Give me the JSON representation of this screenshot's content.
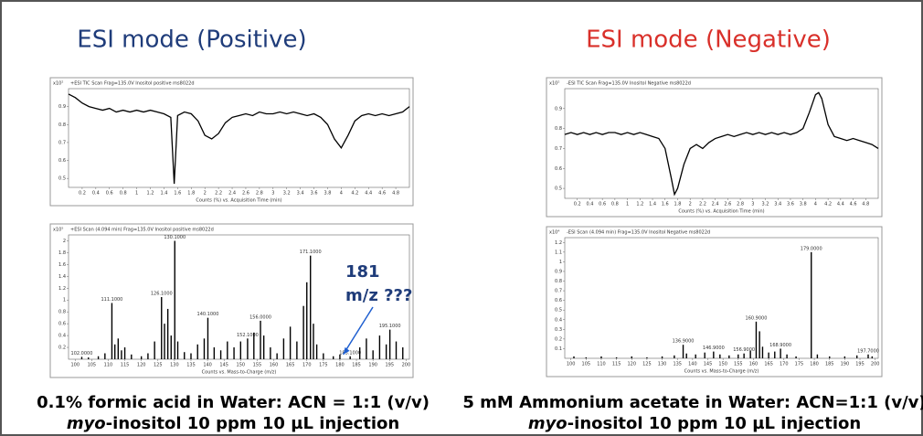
{
  "left": {
    "title": "ESI mode (Positive)",
    "caption_line1": "0.1% formic acid in Water: ACN = 1:1 (v/v)",
    "caption_italic": "myo",
    "caption_line2": "-inositol 10 ppm 10 µL injection"
  },
  "right": {
    "title": "ESI mode (Negative)",
    "caption_line1": "5 mM Ammonium acetate in Water: ACN=1:1 (v/v)",
    "caption_italic": "myo",
    "caption_line2": "-inositol 10 ppm 10 µL injection"
  },
  "chart_data": [
    {
      "type": "line",
      "header": "+ESI TIC Scan Frag=135.0V Inositol positive ms8022d",
      "y_multiplier": "x10²",
      "x_label": "Counts (%) vs. Acquisition Time (min)",
      "color": "#000000",
      "x": [
        0,
        0.1,
        0.2,
        0.3,
        0.4,
        0.5,
        0.6,
        0.7,
        0.8,
        0.9,
        1,
        1.1,
        1.2,
        1.3,
        1.4,
        1.5,
        1.55,
        1.6,
        1.7,
        1.8,
        1.9,
        2,
        2.1,
        2.2,
        2.3,
        2.4,
        2.5,
        2.6,
        2.7,
        2.8,
        2.9,
        3,
        3.1,
        3.2,
        3.3,
        3.4,
        3.5,
        3.6,
        3.7,
        3.8,
        3.9,
        4,
        4.1,
        4.2,
        4.3,
        4.4,
        4.5,
        4.6,
        4.7,
        4.8,
        4.9,
        5
      ],
      "values": [
        0.97,
        0.95,
        0.92,
        0.9,
        0.89,
        0.88,
        0.89,
        0.87,
        0.88,
        0.87,
        0.88,
        0.87,
        0.88,
        0.87,
        0.86,
        0.84,
        0.47,
        0.85,
        0.87,
        0.86,
        0.82,
        0.74,
        0.72,
        0.75,
        0.81,
        0.84,
        0.85,
        0.86,
        0.85,
        0.87,
        0.86,
        0.86,
        0.87,
        0.86,
        0.87,
        0.86,
        0.85,
        0.86,
        0.84,
        0.8,
        0.72,
        0.67,
        0.74,
        0.82,
        0.85,
        0.86,
        0.85,
        0.86,
        0.85,
        0.86,
        0.87,
        0.9
      ],
      "xlim": [
        0,
        5
      ],
      "xticks": [
        0.2,
        0.4,
        0.6,
        0.8,
        1,
        1.2,
        1.4,
        1.6,
        1.8,
        2,
        2.2,
        2.4,
        2.6,
        2.8,
        3,
        3.2,
        3.4,
        3.6,
        3.8,
        4,
        4.2,
        4.4,
        4.6,
        4.8
      ],
      "ylim": [
        0.45,
        1.0
      ],
      "yticks": [
        0.5,
        0.6,
        0.7,
        0.8,
        0.9
      ]
    },
    {
      "type": "line",
      "header": "-ESI TIC Scan Frag=135.0V Inositol Negative ms8022d",
      "y_multiplier": "x10²",
      "x_label": "Counts (%) vs. Acquisition Time (min)",
      "color": "#000000",
      "x": [
        0,
        0.1,
        0.2,
        0.3,
        0.4,
        0.5,
        0.6,
        0.7,
        0.8,
        0.9,
        1,
        1.1,
        1.2,
        1.3,
        1.4,
        1.5,
        1.6,
        1.7,
        1.75,
        1.8,
        1.9,
        2,
        2.1,
        2.2,
        2.3,
        2.4,
        2.5,
        2.6,
        2.7,
        2.8,
        2.9,
        3,
        3.1,
        3.2,
        3.3,
        3.4,
        3.5,
        3.6,
        3.7,
        3.8,
        3.9,
        4,
        4.05,
        4.1,
        4.2,
        4.3,
        4.4,
        4.5,
        4.6,
        4.7,
        4.8,
        4.9,
        5
      ],
      "values": [
        0.77,
        0.78,
        0.77,
        0.78,
        0.77,
        0.78,
        0.77,
        0.78,
        0.78,
        0.77,
        0.78,
        0.77,
        0.78,
        0.77,
        0.76,
        0.75,
        0.7,
        0.55,
        0.47,
        0.5,
        0.62,
        0.7,
        0.72,
        0.7,
        0.73,
        0.75,
        0.76,
        0.77,
        0.76,
        0.77,
        0.78,
        0.77,
        0.78,
        0.77,
        0.78,
        0.77,
        0.78,
        0.77,
        0.78,
        0.8,
        0.88,
        0.97,
        0.98,
        0.95,
        0.82,
        0.76,
        0.75,
        0.74,
        0.75,
        0.74,
        0.73,
        0.72,
        0.7
      ],
      "xlim": [
        0,
        5
      ],
      "xticks": [
        0.2,
        0.4,
        0.6,
        0.8,
        1,
        1.2,
        1.4,
        1.6,
        1.8,
        2,
        2.2,
        2.4,
        2.6,
        2.8,
        3,
        3.2,
        3.4,
        3.6,
        3.8,
        4,
        4.2,
        4.4,
        4.6,
        4.8
      ],
      "ylim": [
        0.45,
        1.0
      ],
      "yticks": [
        0.5,
        0.6,
        0.7,
        0.8,
        0.9
      ]
    },
    {
      "type": "spectrum",
      "header": "+ESI Scan (4.094 min) Frag=135.0V Inositol positive ms8022d",
      "y_multiplier": "x10⁵",
      "x_label": "Counts vs. Mass-to-Charge (m/z)",
      "color": "#000000",
      "annotations": [
        "181",
        "m/z ???"
      ],
      "x": [
        102,
        104,
        107,
        109,
        111.1,
        112,
        113,
        114,
        115,
        117,
        120,
        122,
        124,
        126.1,
        127,
        128,
        129,
        130.1,
        131,
        133,
        135,
        137,
        139,
        140.1,
        142,
        144,
        146,
        148,
        150,
        152.1,
        154,
        156,
        157,
        159,
        161,
        163,
        165,
        167,
        169,
        170,
        171.1,
        172,
        173,
        175,
        178,
        180,
        183.1,
        186,
        188,
        190,
        192,
        194,
        195.1,
        197,
        199
      ],
      "values": [
        0.04,
        0.03,
        0.05,
        0.1,
        0.95,
        0.25,
        0.35,
        0.15,
        0.2,
        0.08,
        0.05,
        0.1,
        0.3,
        1.05,
        0.6,
        0.85,
        0.4,
        2.0,
        0.3,
        0.12,
        0.1,
        0.25,
        0.35,
        0.7,
        0.2,
        0.15,
        0.3,
        0.2,
        0.3,
        0.35,
        0.45,
        0.65,
        0.4,
        0.2,
        0.1,
        0.35,
        0.55,
        0.3,
        0.9,
        1.3,
        1.75,
        0.6,
        0.25,
        0.1,
        0.05,
        0.08,
        0.05,
        0.2,
        0.35,
        0.15,
        0.4,
        0.25,
        0.5,
        0.3,
        0.2
      ],
      "peak_labels": [
        "102.0000",
        null,
        null,
        null,
        "111.1000",
        null,
        null,
        null,
        null,
        null,
        null,
        null,
        null,
        "126.1000",
        null,
        null,
        null,
        "130.1000",
        null,
        null,
        null,
        null,
        null,
        "140.1000",
        null,
        null,
        null,
        null,
        null,
        "152.1000",
        null,
        "156.0000",
        null,
        null,
        null,
        null,
        null,
        null,
        null,
        null,
        "171.1000",
        null,
        null,
        null,
        null,
        null,
        "183.1000",
        null,
        null,
        null,
        null,
        null,
        "195.1000",
        null,
        null
      ],
      "xlim": [
        98,
        201
      ],
      "xticks": [
        100,
        105,
        110,
        115,
        120,
        125,
        130,
        135,
        140,
        145,
        150,
        155,
        160,
        165,
        170,
        175,
        180,
        185,
        190,
        195,
        200
      ],
      "ylim": [
        0,
        2.1
      ],
      "yticks": [
        0.2,
        0.4,
        0.6,
        0.8,
        1,
        1.2,
        1.4,
        1.6,
        1.8,
        2
      ]
    },
    {
      "type": "spectrum",
      "header": "-ESI Scan (4.094 min) Frag=135.0V Inositol Negative ms8022d",
      "y_multiplier": "x10⁴",
      "x_label": "Counts vs. Mass-to-Charge (m/z)",
      "color": "#000000",
      "x": [
        101,
        105,
        110,
        115,
        120,
        125,
        130,
        134,
        136.9,
        138,
        141,
        144,
        146.9,
        149,
        152,
        155,
        156.9,
        159,
        160.9,
        162,
        163,
        165,
        167,
        168.9,
        171,
        174,
        179,
        181,
        185,
        190,
        194,
        197.7,
        199
      ],
      "values": [
        0.02,
        0.01,
        0.02,
        0.01,
        0.02,
        0.01,
        0.02,
        0.03,
        0.14,
        0.05,
        0.04,
        0.06,
        0.07,
        0.04,
        0.03,
        0.04,
        0.05,
        0.08,
        0.38,
        0.28,
        0.12,
        0.06,
        0.07,
        0.1,
        0.04,
        0.02,
        1.1,
        0.04,
        0.02,
        0.02,
        0.03,
        0.04,
        0.02
      ],
      "peak_labels": [
        null,
        null,
        null,
        null,
        null,
        null,
        null,
        null,
        "136.9000",
        null,
        null,
        null,
        "146.9000",
        null,
        null,
        null,
        "156.9000",
        null,
        "160.9000",
        null,
        null,
        null,
        null,
        "168.9000",
        null,
        null,
        "179.0000",
        null,
        null,
        null,
        null,
        "197.7000",
        null
      ],
      "xlim": [
        98,
        201
      ],
      "xticks": [
        100,
        105,
        110,
        115,
        120,
        125,
        130,
        135,
        140,
        145,
        150,
        155,
        160,
        165,
        170,
        175,
        180,
        185,
        190,
        195,
        200
      ],
      "ylim": [
        0,
        1.25
      ],
      "yticks": [
        0.1,
        0.2,
        0.3,
        0.4,
        0.5,
        0.6,
        0.7,
        0.8,
        0.9,
        1,
        1.1,
        1.2
      ]
    }
  ]
}
